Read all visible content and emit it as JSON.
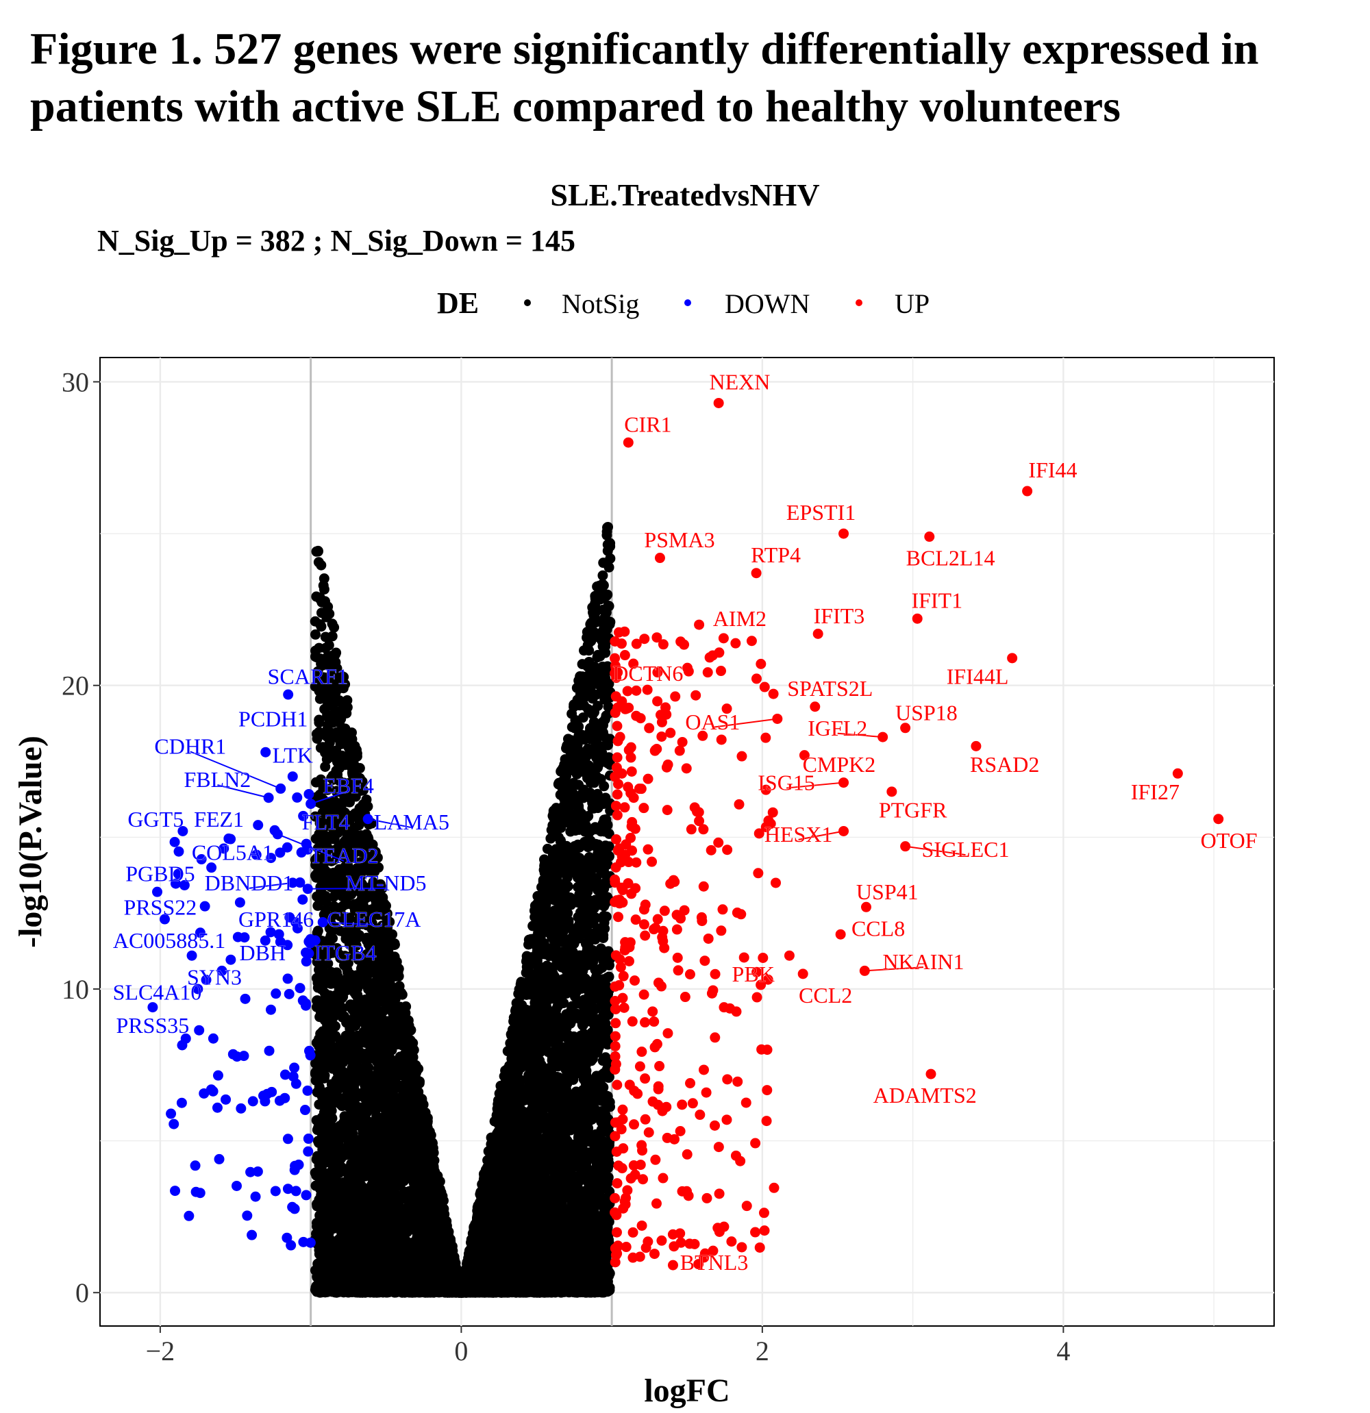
{
  "figure_title": "Figure 1.  527 genes were significantly differentially expressed in patients with active SLE compared to healthy volunteers",
  "colors": {
    "NotSig": "#000000",
    "DOWN": "#0000ff",
    "UP": "#ff0000",
    "grid": "#ebebeb",
    "threshold": "#bdbdbd"
  },
  "chart_data": {
    "type": "scatter",
    "title": "SLE.TreatedvsNHV",
    "subtitle": "N_Sig_Up = 382 ;  N_Sig_Down =  145",
    "xlabel": "logFC",
    "ylabel": "-log10(P.Value)",
    "xlim": [
      -2.4,
      5.4
    ],
    "ylim": [
      -1.1,
      30.8
    ],
    "xticks": [
      -2,
      0,
      2,
      4
    ],
    "yticks": [
      0,
      10,
      20,
      30
    ],
    "xtick_labels": [
      "−2",
      "0",
      "2",
      "4"
    ],
    "ytick_labels": [
      "0",
      "10",
      "20",
      "30"
    ],
    "threshold_lines_x": [
      -1,
      1
    ],
    "grid": true,
    "legend": {
      "title": "DE",
      "position": "top",
      "entries": [
        "NotSig",
        "DOWN",
        "UP"
      ]
    },
    "counts": {
      "up": 382,
      "down": 145
    },
    "labeled_points": [
      {
        "gene": "NEXN",
        "x": 1.71,
        "y": 29.3,
        "group": "UP",
        "lx": 1.85,
        "ly": 30.0
      },
      {
        "gene": "CIR1",
        "x": 1.11,
        "y": 28.0,
        "group": "UP",
        "lx": 1.24,
        "ly": 28.6
      },
      {
        "gene": "IFI44",
        "x": 3.76,
        "y": 26.4,
        "group": "UP",
        "lx": 3.93,
        "ly": 27.1
      },
      {
        "gene": "EPSTI1",
        "x": 2.54,
        "y": 25.0,
        "group": "UP",
        "lx": 2.39,
        "ly": 25.7
      },
      {
        "gene": "BCL2L14",
        "x": 3.11,
        "y": 24.9,
        "group": "UP",
        "lx": 3.25,
        "ly": 24.2
      },
      {
        "gene": "PSMA3",
        "x": 1.32,
        "y": 24.2,
        "group": "UP",
        "lx": 1.45,
        "ly": 24.8
      },
      {
        "gene": "RTP4",
        "x": 1.96,
        "y": 23.7,
        "group": "UP",
        "lx": 2.09,
        "ly": 24.3
      },
      {
        "gene": "IFIT1",
        "x": 3.03,
        "y": 22.2,
        "group": "UP",
        "lx": 3.16,
        "ly": 22.8
      },
      {
        "gene": "AIM2",
        "x": 1.58,
        "y": 22.0,
        "group": "UP",
        "lx": 1.85,
        "ly": 22.2
      },
      {
        "gene": "IFIT3",
        "x": 2.37,
        "y": 21.7,
        "group": "UP",
        "lx": 2.51,
        "ly": 22.3
      },
      {
        "gene": "IFI44L",
        "x": 3.66,
        "y": 20.9,
        "group": "UP",
        "lx": 3.43,
        "ly": 20.3
      },
      {
        "gene": "DCTN6",
        "x": 1.02,
        "y": 20.4,
        "group": "UP",
        "lx": 1.24,
        "ly": 20.4
      },
      {
        "gene": "SPATS2L",
        "x": 2.35,
        "y": 19.3,
        "group": "UP",
        "lx": 2.45,
        "ly": 19.9
      },
      {
        "gene": "USP18",
        "x": 2.95,
        "y": 18.6,
        "group": "UP",
        "lx": 3.09,
        "ly": 19.1
      },
      {
        "gene": "OAS1",
        "x": 2.1,
        "y": 18.9,
        "group": "UP",
        "lx": 1.67,
        "ly": 18.8
      },
      {
        "gene": "IGFL2",
        "x": 2.8,
        "y": 18.3,
        "group": "UP",
        "lx": 2.5,
        "ly": 18.6
      },
      {
        "gene": "RSAD2",
        "x": 3.42,
        "y": 18.0,
        "group": "UP",
        "lx": 3.61,
        "ly": 17.4
      },
      {
        "gene": "CMPK2",
        "x": 2.28,
        "y": 17.7,
        "group": "UP",
        "lx": 2.51,
        "ly": 17.4
      },
      {
        "gene": "IFI27",
        "x": 4.76,
        "y": 17.1,
        "group": "UP",
        "lx": 4.61,
        "ly": 16.5
      },
      {
        "gene": "ISG15",
        "x": 2.54,
        "y": 16.8,
        "group": "UP",
        "lx": 2.16,
        "ly": 16.8
      },
      {
        "gene": "PTGFR",
        "x": 2.86,
        "y": 16.5,
        "group": "UP",
        "lx": 3.0,
        "ly": 15.9
      },
      {
        "gene": "OTOF",
        "x": 5.03,
        "y": 15.6,
        "group": "UP",
        "lx": 5.1,
        "ly": 14.9
      },
      {
        "gene": "HESX1",
        "x": 2.54,
        "y": 15.2,
        "group": "UP",
        "lx": 2.24,
        "ly": 15.1
      },
      {
        "gene": "SIGLEC1",
        "x": 2.95,
        "y": 14.7,
        "group": "UP",
        "lx": 3.35,
        "ly": 14.6
      },
      {
        "gene": "USP41",
        "x": 2.69,
        "y": 12.7,
        "group": "UP",
        "lx": 2.83,
        "ly": 13.2
      },
      {
        "gene": "CCL8",
        "x": 2.52,
        "y": 11.8,
        "group": "UP",
        "lx": 2.77,
        "ly": 12.0
      },
      {
        "gene": "NKAIN1",
        "x": 2.68,
        "y": 10.6,
        "group": "UP",
        "lx": 3.07,
        "ly": 10.9
      },
      {
        "gene": "PBK",
        "x": 2.18,
        "y": 11.1,
        "group": "UP",
        "lx": 1.94,
        "ly": 10.5
      },
      {
        "gene": "CCL2",
        "x": 2.27,
        "y": 10.5,
        "group": "UP",
        "lx": 2.42,
        "ly": 9.8
      },
      {
        "gene": "ADAMTS2",
        "x": 3.12,
        "y": 7.2,
        "group": "UP",
        "lx": 3.08,
        "ly": 6.5
      },
      {
        "gene": "BTNL3",
        "x": 1.55,
        "y": 1.6,
        "group": "UP",
        "lx": 1.68,
        "ly": 1.0
      },
      {
        "gene": "SCARF1",
        "x": -1.15,
        "y": 19.7,
        "group": "DOWN",
        "lx": -1.02,
        "ly": 20.3
      },
      {
        "gene": "PCDH1",
        "x": -1.3,
        "y": 17.8,
        "group": "DOWN",
        "lx": -1.25,
        "ly": 18.9
      },
      {
        "gene": "CDHR1",
        "x": -1.2,
        "y": 16.6,
        "group": "DOWN",
        "lx": -1.8,
        "ly": 18.0
      },
      {
        "gene": "LTK",
        "x": -1.12,
        "y": 17.0,
        "group": "DOWN",
        "lx": -1.12,
        "ly": 17.7
      },
      {
        "gene": "FBLN2",
        "x": -1.28,
        "y": 16.3,
        "group": "DOWN",
        "lx": -1.62,
        "ly": 16.9
      },
      {
        "gene": "EBF4",
        "x": -1.0,
        "y": 16.1,
        "group": "DOWN",
        "lx": -0.75,
        "ly": 16.7
      },
      {
        "gene": "GGT5",
        "x": -1.85,
        "y": 15.2,
        "group": "DOWN",
        "lx": -2.03,
        "ly": 15.6
      },
      {
        "gene": "FEZ1",
        "x": -1.35,
        "y": 15.4,
        "group": "DOWN",
        "lx": -1.61,
        "ly": 15.6
      },
      {
        "gene": "FLT4",
        "x": -1.05,
        "y": 15.7,
        "group": "DOWN",
        "lx": -0.9,
        "ly": 15.5
      },
      {
        "gene": "LAMA5",
        "x": -0.62,
        "y": 15.6,
        "group": "DOWN",
        "lx": -0.33,
        "ly": 15.5
      },
      {
        "gene": "COL5A1",
        "x": -1.66,
        "y": 14.0,
        "group": "DOWN",
        "lx": -1.52,
        "ly": 14.5
      },
      {
        "gene": "TEAD2",
        "x": -1.22,
        "y": 15.1,
        "group": "DOWN",
        "lx": -0.78,
        "ly": 14.4
      },
      {
        "gene": "PGBD5",
        "x": -2.02,
        "y": 13.2,
        "group": "DOWN",
        "lx": -2.0,
        "ly": 13.8
      },
      {
        "gene": "DBNDD1",
        "x": -1.12,
        "y": 13.5,
        "group": "DOWN",
        "lx": -1.41,
        "ly": 13.5
      },
      {
        "gene": "MT-ND5",
        "x": -1.02,
        "y": 13.3,
        "group": "DOWN",
        "lx": -0.5,
        "ly": 13.5
      },
      {
        "gene": "PRSS22",
        "x": -1.97,
        "y": 12.3,
        "group": "DOWN",
        "lx": -2.0,
        "ly": 12.7
      },
      {
        "gene": "GPR146",
        "x": -1.1,
        "y": 12.2,
        "group": "DOWN",
        "lx": -1.23,
        "ly": 12.3
      },
      {
        "gene": "CLEC17A",
        "x": -0.92,
        "y": 12.2,
        "group": "DOWN",
        "lx": -0.58,
        "ly": 12.3
      },
      {
        "gene": "AC005885.1",
        "x": -1.79,
        "y": 11.1,
        "group": "DOWN",
        "lx": -1.94,
        "ly": 11.6
      },
      {
        "gene": "DBH",
        "x": -1.44,
        "y": 11.7,
        "group": "DOWN",
        "lx": -1.32,
        "ly": 11.2
      },
      {
        "gene": "ITGB4",
        "x": -0.97,
        "y": 11.6,
        "group": "DOWN",
        "lx": -0.77,
        "ly": 11.2
      },
      {
        "gene": "SYN3",
        "x": -1.59,
        "y": 10.6,
        "group": "DOWN",
        "lx": -1.64,
        "ly": 10.4
      },
      {
        "gene": "SLC4A10",
        "x": -1.75,
        "y": 10.0,
        "group": "DOWN",
        "lx": -2.02,
        "ly": 9.9
      },
      {
        "gene": "PRSS35",
        "x": -2.05,
        "y": 9.4,
        "group": "DOWN",
        "lx": -2.05,
        "ly": 8.8
      }
    ]
  }
}
